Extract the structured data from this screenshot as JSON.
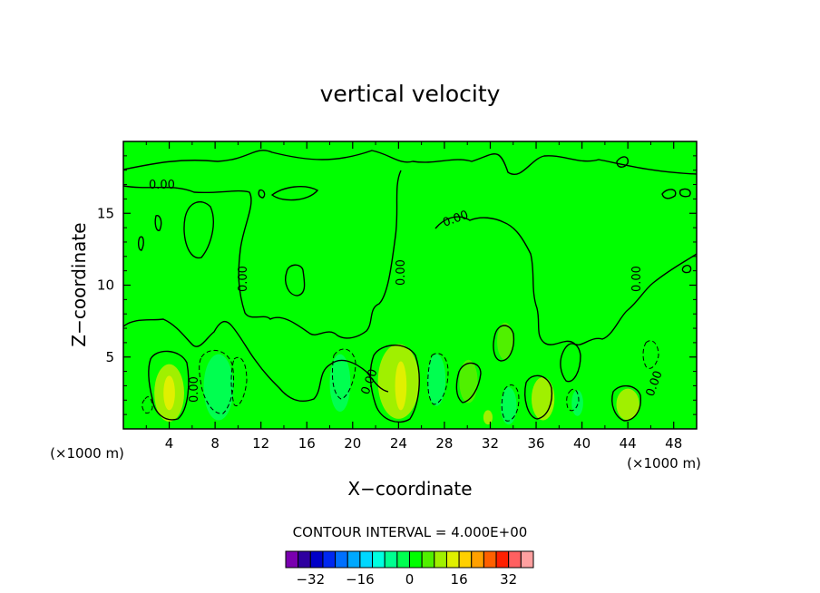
{
  "chart_data": {
    "type": "heatmap",
    "title": "vertical velocity",
    "xlabel": "X−coordinate",
    "ylabel": "Z−coordinate",
    "x_unit": "(×1000 m)",
    "y_unit": "(×1000 m)",
    "xlim": [
      0,
      50
    ],
    "ylim": [
      0,
      20
    ],
    "x_ticks": [
      4,
      8,
      12,
      16,
      20,
      24,
      28,
      32,
      36,
      40,
      44,
      48
    ],
    "y_ticks": [
      5,
      10,
      15
    ],
    "x_tick_labels": [
      "4",
      "8",
      "12",
      "16",
      "20",
      "24",
      "28",
      "32",
      "36",
      "40",
      "44",
      "48"
    ],
    "y_tick_labels": [
      "5",
      "10",
      "15"
    ],
    "contour_interval_text": "CONTOUR INTERVAL = 4.000E+00",
    "contour_interval": 4,
    "contour_labels": [
      "0.00",
      "0.00",
      "0.00",
      "0.00",
      "0.00",
      "0.00",
      "0.00",
      "0.00"
    ],
    "background_value": 0,
    "colorbar": {
      "levels": [
        -36,
        -32,
        -28,
        -24,
        -20,
        -16,
        -12,
        -8,
        -4,
        0,
        4,
        8,
        12,
        16,
        20,
        24,
        28,
        32,
        36
      ],
      "colors": [
        "#7a00b0",
        "#2e00a0",
        "#0000c8",
        "#0028f0",
        "#0070ff",
        "#00a8ff",
        "#00d8ff",
        "#00ffe0",
        "#00ff90",
        "#00ff50",
        "#00ff00",
        "#50f000",
        "#a0f000",
        "#e0f000",
        "#ffd000",
        "#ffa000",
        "#ff6000",
        "#ff2000",
        "#ff6060",
        "#ffa0a0"
      ],
      "tick_labels": [
        "−32",
        "−16",
        "0",
        "16",
        "32"
      ],
      "tick_values": [
        -32,
        -16,
        0,
        16,
        32
      ]
    },
    "features": [
      {
        "kind": "updraft",
        "x": 4.0,
        "z": 2.5,
        "rx": 1.3,
        "rz": 2.0,
        "value": 8
      },
      {
        "kind": "updraft-core",
        "x": 4.0,
        "z": 2.5,
        "rx": 0.5,
        "rz": 1.2,
        "value": 12
      },
      {
        "kind": "downdraft",
        "x": 8.3,
        "z": 2.9,
        "rx": 1.3,
        "rz": 2.3,
        "value": -4
      },
      {
        "kind": "downdraft",
        "x": 18.9,
        "z": 3.2,
        "rx": 0.9,
        "rz": 2.0,
        "value": -4
      },
      {
        "kind": "updraft",
        "x": 24.0,
        "z": 3.3,
        "rx": 1.8,
        "rz": 2.6,
        "value": 8
      },
      {
        "kind": "updraft-core",
        "x": 24.2,
        "z": 3.0,
        "rx": 0.5,
        "rz": 1.7,
        "value": 12
      },
      {
        "kind": "downdraft",
        "x": 27.3,
        "z": 3.4,
        "rx": 0.8,
        "rz": 1.8,
        "value": -4
      },
      {
        "kind": "updraft",
        "x": 30.1,
        "z": 3.3,
        "rx": 0.8,
        "rz": 1.5,
        "value": 4
      },
      {
        "kind": "updraft",
        "x": 33.3,
        "z": 6.1,
        "rx": 0.7,
        "rz": 1.3,
        "value": 4
      },
      {
        "kind": "downdraft",
        "x": 33.6,
        "z": 1.6,
        "rx": 0.7,
        "rz": 1.3,
        "value": -4
      },
      {
        "kind": "updraft",
        "x": 36.6,
        "z": 2.1,
        "rx": 1.0,
        "rz": 1.5,
        "value": 8
      },
      {
        "kind": "updraft",
        "x": 44.0,
        "z": 1.7,
        "rx": 1.0,
        "rz": 1.1,
        "value": 8
      },
      {
        "kind": "downdraft",
        "x": 39.6,
        "z": 1.8,
        "rx": 0.5,
        "rz": 0.9,
        "value": -4
      },
      {
        "kind": "updraft",
        "x": 31.8,
        "z": 0.8,
        "rx": 0.4,
        "rz": 0.5,
        "value": 8
      }
    ]
  }
}
